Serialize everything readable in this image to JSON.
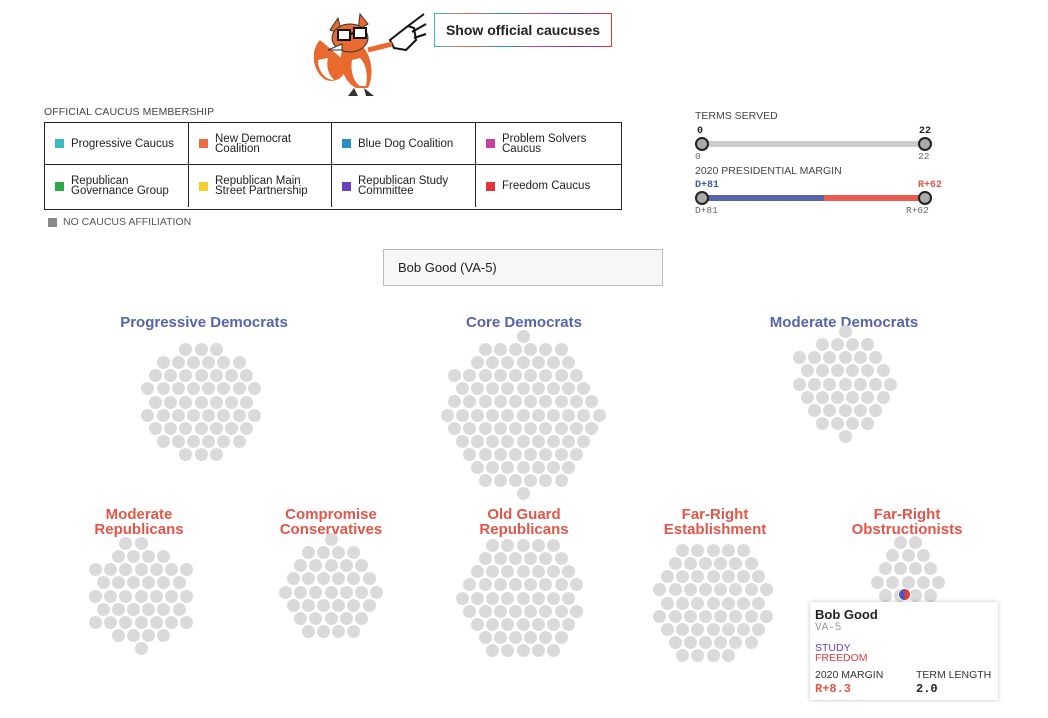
{
  "toggle_button": {
    "label": "Show official caucuses"
  },
  "legend": {
    "heading": "OFFICIAL CAUCUS MEMBERSHIP",
    "items": [
      {
        "label": "Progressive Caucus",
        "color": "#3bbcc4"
      },
      {
        "label": "New Democrat Coalition",
        "color": "#ee6b45"
      },
      {
        "label": "Blue Dog Coalition",
        "color": "#2a8fc4"
      },
      {
        "label": "Problem Solvers Caucus",
        "color": "#c8409d"
      },
      {
        "label": "Republican Governance Group",
        "color": "#2aa84a"
      },
      {
        "label": "Republican Main Street Partnership",
        "color": "#f2cf2c"
      },
      {
        "label": "Republican Study Committee",
        "color": "#6a3fc2"
      },
      {
        "label": "Freedom Caucus",
        "color": "#e33535"
      }
    ],
    "no_affiliation": "NO CAUCUS AFFILIATION"
  },
  "terms_filter": {
    "heading": "TERMS SERVED",
    "min": "0",
    "max": "22",
    "min_label": "0",
    "max_label": "22"
  },
  "margin_filter": {
    "heading": "2020 PRESIDENTIAL MARGIN",
    "min": "D+81",
    "max": "R+62",
    "min_label": "D+81",
    "max_label": "R+62"
  },
  "search": {
    "value": "Bob Good (VA-5)"
  },
  "groups": [
    {
      "title": "Progressive Democrats",
      "party": "dem",
      "count": 55
    },
    {
      "title": "Core Democrats",
      "party": "dem",
      "count": 94
    },
    {
      "title": "Moderate Democrats",
      "party": "dem",
      "count": 40
    },
    {
      "title": "Moderate Republicans",
      "party": "rep",
      "count": 44
    },
    {
      "title": "Compromise Conservatives",
      "party": "rep",
      "count": 38
    },
    {
      "title": "Old Guard Republicans",
      "party": "rep",
      "count": 60
    },
    {
      "title": "Far-Right Establishment",
      "party": "rep",
      "count": 58
    },
    {
      "title": "Far-Right Obstructionists",
      "party": "rep",
      "count": 22
    }
  ],
  "tooltip": {
    "name": "Bob Good",
    "district": "VA-5",
    "caucus_1": "STUDY",
    "caucus_2": "FREEDOM",
    "margin_label": "2020 MARGIN",
    "margin_value": "R+8.3",
    "term_label": "TERM LENGTH",
    "term_value": "2.0"
  }
}
